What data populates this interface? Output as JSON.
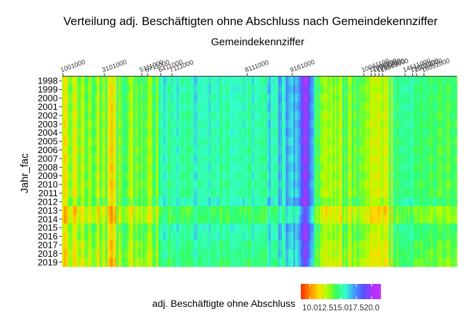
{
  "chart_data": {
    "type": "heatmap",
    "title": "Verteilung adj. Beschäftigten ohne Abschluss nach Gemeindekennziffer",
    "subtitle": "Gemeindekennziffer",
    "xlabel": "Gemeindekennziffer",
    "ylabel": "Jahr_fac",
    "x_axis_position": "top",
    "x_tick_labels": [
      "1001000",
      "3101000",
      "5111000",
      "5711000",
      "6411000",
      "7111000",
      "8111000",
      "9161000",
      "10041100",
      "11000000",
      "12051000",
      "12053000",
      "13003000",
      "14511000",
      "15001000",
      "15003000",
      "16051000"
    ],
    "y_categories": [
      "1998",
      "1999",
      "2000",
      "2001",
      "2002",
      "2003",
      "2004",
      "2005",
      "2006",
      "2007",
      "2008",
      "2009",
      "2010",
      "2011",
      "2012",
      "2013",
      "2014",
      "2015",
      "2016",
      "2017",
      "2018",
      "2019"
    ],
    "value_range": [
      8.5,
      21.5
    ],
    "column_count": 210,
    "legend": {
      "title": "adj. Beschäftigte ohne Abschluss",
      "ticks": [
        "10.0",
        "12.5",
        "15.0",
        "17.5",
        "20.0"
      ],
      "tick_values": [
        10.0,
        12.5,
        15.0,
        17.5,
        20.0
      ],
      "position": "bottom",
      "colors": [
        "#ff2a00",
        "#ff8800",
        "#ffdd00",
        "#aaff00",
        "#33ff66",
        "#33ffcc",
        "#4499ff",
        "#5555ff",
        "#aa33ff",
        "#cc33ff"
      ]
    },
    "year_shifts": [
      0.3,
      0.3,
      0.2,
      0.2,
      0.1,
      0.1,
      0.1,
      0.0,
      0.0,
      0.0,
      0.0,
      0.0,
      -0.1,
      -0.1,
      0.4,
      -1.0,
      -0.9,
      0.2,
      0.1,
      -0.3,
      -0.4,
      -0.6
    ],
    "column_values": [
      12.4,
      11.2,
      11.6,
      13.1,
      13.7,
      12.7,
      11.6,
      11.9,
      13.3,
      13.7,
      12.4,
      12.3,
      14.0,
      13.8,
      12.7,
      13.1,
      14.1,
      13.9,
      12.9,
      11.9,
      14.2,
      13.0,
      12.6,
      14.4,
      12.0,
      11.5,
      10.8,
      12.2,
      11.5,
      14.6,
      12.8,
      13.5,
      14.7,
      14.2,
      14.1,
      13.2,
      12.6,
      12.4,
      14.4,
      13.1,
      13.6,
      14.2,
      13.2,
      14.5,
      13.7,
      13.4,
      12.5,
      12.8,
      14.3,
      14.5,
      12.7,
      14.6,
      15.1,
      15.2,
      16.1,
      15.5,
      15.0,
      14.2,
      15.7,
      15.1,
      15.2,
      16.0,
      15.4,
      14.9,
      14.8,
      15.3,
      14.7,
      14.6,
      15.1,
      15.1,
      16.1,
      16.1,
      15.2,
      15.1,
      15.4,
      15.4,
      15.5,
      15.2,
      16.1,
      15.0,
      15.3,
      15.0,
      15.5,
      15.7,
      14.4,
      15.1,
      15.4,
      14.7,
      14.9,
      15.4,
      15.6,
      15.5,
      15.4,
      15.4,
      15.2,
      15.0,
      15.8,
      14.8,
      15.4,
      14.6,
      15.0,
      16.0,
      15.1,
      15.3,
      15.2,
      15.2,
      14.5,
      15.4,
      14.5,
      16.0,
      16.6,
      15.3,
      15.6,
      15.1,
      15.1,
      17.0,
      16.6,
      15.3,
      15.7,
      17.4,
      16.7,
      16.3,
      16.0,
      17.2,
      16.2,
      16.7,
      17.4,
      18.8,
      19.2,
      20.2,
      19.0,
      18.3,
      17.1,
      16.8,
      14.9,
      13.7,
      14.6,
      13.3,
      13.1,
      12.8,
      12.2,
      13.3,
      12.9,
      12.6,
      13.6,
      12.5,
      13.6,
      12.6,
      12.1,
      14.4,
      13.5,
      14.4,
      12.8,
      12.4,
      14.3,
      13.4,
      13.4,
      14.6,
      13.4,
      13.3,
      13.6,
      12.9,
      13.0,
      13.0,
      11.9,
      12.3,
      12.3,
      12.4,
      11.9,
      12.4,
      13.0,
      11.8,
      12.1,
      12.5,
      14.7,
      12.0,
      15.1,
      14.8,
      14.0,
      14.8,
      14.8,
      15.0,
      14.6,
      15.1,
      14.5,
      15.5,
      15.0,
      14.3,
      14.2,
      14.5,
      14.3,
      14.0,
      14.6,
      14.4,
      14.3,
      14.3,
      13.7,
      14.3,
      14.6,
      14.1,
      13.8,
      13.6,
      14.1,
      14.6,
      13.8,
      13.5,
      14.0,
      14.4,
      14.3,
      13.9
    ]
  }
}
